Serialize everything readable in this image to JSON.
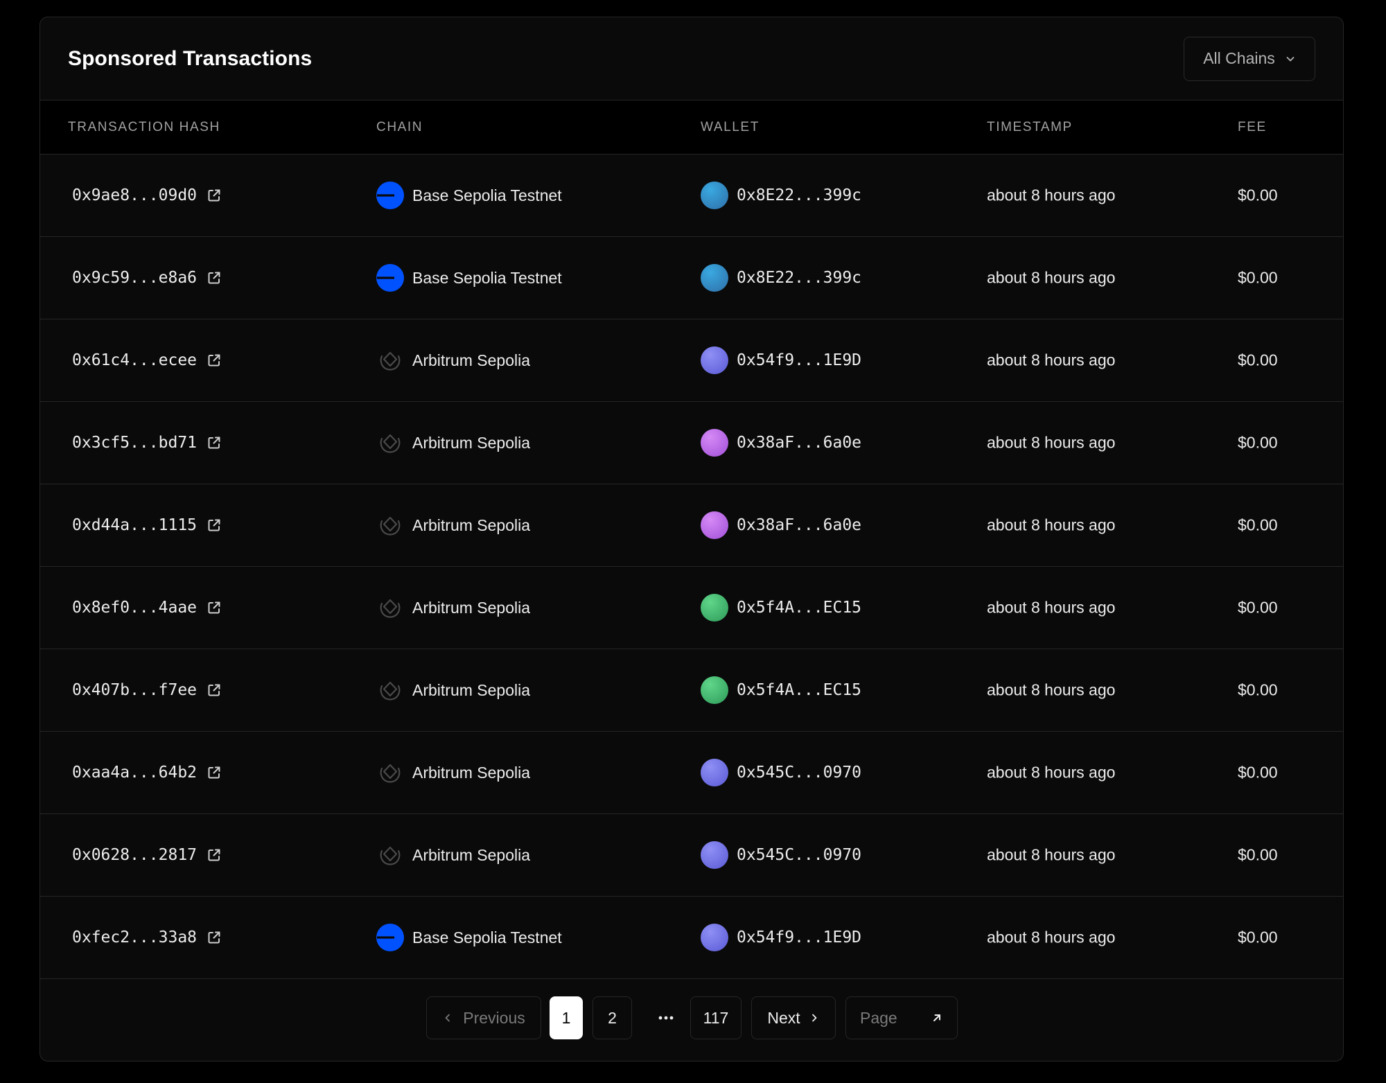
{
  "header": {
    "title": "Sponsored Transactions",
    "chain_filter": "All Chains"
  },
  "table": {
    "columns": [
      "TRANSACTION HASH",
      "CHAIN",
      "WALLET",
      "TIMESTAMP",
      "FEE"
    ],
    "rows": [
      {
        "hash": "0x9ae8...09d0",
        "chain": "Base Sepolia Testnet",
        "chain_icon": "base-logo-icon",
        "wallet": "0x8E22...399c",
        "avatar": [
          "#3aa8e0",
          "#2e6fa8"
        ],
        "timestamp": "about 8 hours ago",
        "fee": "$0.00"
      },
      {
        "hash": "0x9c59...e8a6",
        "chain": "Base Sepolia Testnet",
        "chain_icon": "base-logo-icon",
        "wallet": "0x8E22...399c",
        "avatar": [
          "#3aa8e0",
          "#2e6fa8"
        ],
        "timestamp": "about 8 hours ago",
        "fee": "$0.00"
      },
      {
        "hash": "0x61c4...ecee",
        "chain": "Arbitrum Sepolia",
        "chain_icon": "arbitrum-logo-icon",
        "wallet": "0x54f9...1E9D",
        "avatar": [
          "#8f8ff5",
          "#5a5ad6"
        ],
        "timestamp": "about 8 hours ago",
        "fee": "$0.00"
      },
      {
        "hash": "0x3cf5...bd71",
        "chain": "Arbitrum Sepolia",
        "chain_icon": "arbitrum-logo-icon",
        "wallet": "0x38aF...6a0e",
        "avatar": [
          "#d58af5",
          "#a14fd8"
        ],
        "timestamp": "about 8 hours ago",
        "fee": "$0.00"
      },
      {
        "hash": "0xd44a...1115",
        "chain": "Arbitrum Sepolia",
        "chain_icon": "arbitrum-logo-icon",
        "wallet": "0x38aF...6a0e",
        "avatar": [
          "#d58af5",
          "#a14fd8"
        ],
        "timestamp": "about 8 hours ago",
        "fee": "$0.00"
      },
      {
        "hash": "0x8ef0...4aae",
        "chain": "Arbitrum Sepolia",
        "chain_icon": "arbitrum-logo-icon",
        "wallet": "0x5f4A...EC15",
        "avatar": [
          "#5fd68a",
          "#2e9a58"
        ],
        "timestamp": "about 8 hours ago",
        "fee": "$0.00"
      },
      {
        "hash": "0x407b...f7ee",
        "chain": "Arbitrum Sepolia",
        "chain_icon": "arbitrum-logo-icon",
        "wallet": "0x5f4A...EC15",
        "avatar": [
          "#5fd68a",
          "#2e9a58"
        ],
        "timestamp": "about 8 hours ago",
        "fee": "$0.00"
      },
      {
        "hash": "0xaa4a...64b2",
        "chain": "Arbitrum Sepolia",
        "chain_icon": "arbitrum-logo-icon",
        "wallet": "0x545C...0970",
        "avatar": [
          "#8f8ff5",
          "#5a5ad6"
        ],
        "timestamp": "about 8 hours ago",
        "fee": "$0.00"
      },
      {
        "hash": "0x0628...2817",
        "chain": "Arbitrum Sepolia",
        "chain_icon": "arbitrum-logo-icon",
        "wallet": "0x545C...0970",
        "avatar": [
          "#8f8ff5",
          "#5a5ad6"
        ],
        "timestamp": "about 8 hours ago",
        "fee": "$0.00"
      },
      {
        "hash": "0xfec2...33a8",
        "chain": "Base Sepolia Testnet",
        "chain_icon": "base-logo-icon",
        "wallet": "0x54f9...1E9D",
        "avatar": [
          "#8f8ff5",
          "#5a5ad6"
        ],
        "timestamp": "about 8 hours ago",
        "fee": "$0.00"
      }
    ]
  },
  "pagination": {
    "previous": "Previous",
    "pages": [
      "1",
      "2"
    ],
    "ellipsis": "...",
    "last_page": "117",
    "current": "1",
    "next": "Next",
    "page_jump_placeholder": "Page"
  },
  "colors": {
    "base_blue": "#0052ff",
    "background": "#000000",
    "card": "#0a0a0a",
    "border": "#262626"
  }
}
